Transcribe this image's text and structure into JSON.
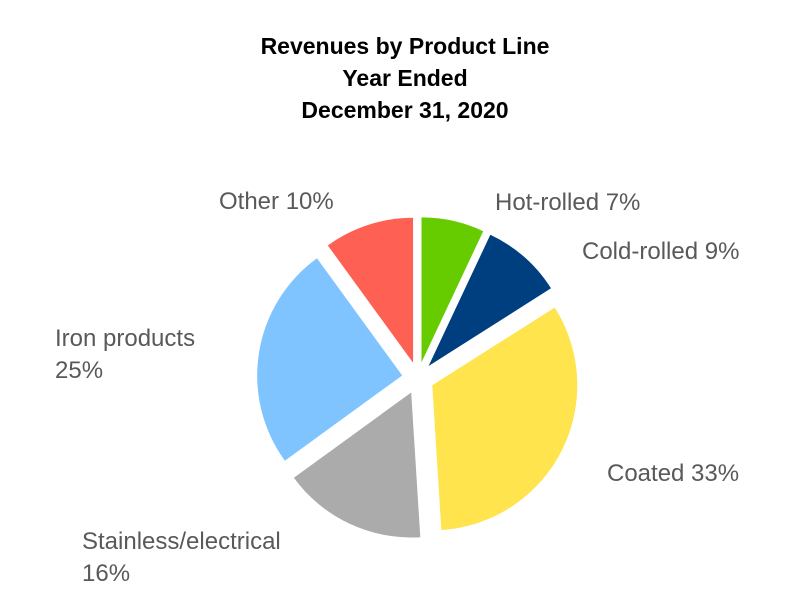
{
  "chart_data": {
    "type": "pie",
    "title_lines": [
      "Revenues by Product Line",
      "Year Ended",
      "December 31, 2020"
    ],
    "exploded": true,
    "slices": [
      {
        "key": "hot-rolled",
        "name": "Hot-rolled",
        "value": 7,
        "label_lines": [
          "Hot-rolled 7%"
        ],
        "color": "#66CC00"
      },
      {
        "key": "cold-rolled",
        "name": "Cold-rolled",
        "value": 9,
        "label_lines": [
          "Cold-rolled 9%"
        ],
        "color": "#003F7F"
      },
      {
        "key": "coated",
        "name": "Coated",
        "value": 33,
        "label_lines": [
          "Coated 33%"
        ],
        "color": "#FFE44D"
      },
      {
        "key": "stainless-electrical",
        "name": "Stainless/electrical",
        "value": 16,
        "label_lines": [
          "Stainless/electrical",
          "16%"
        ],
        "color": "#ABABAB"
      },
      {
        "key": "iron-products",
        "name": "Iron products",
        "value": 25,
        "label_lines": [
          "Iron products",
          "25%"
        ],
        "color": "#80C4FF"
      },
      {
        "key": "other",
        "name": "Other",
        "value": 10,
        "label_lines": [
          "Other 10%"
        ],
        "color": "#FF6054"
      }
    ]
  }
}
